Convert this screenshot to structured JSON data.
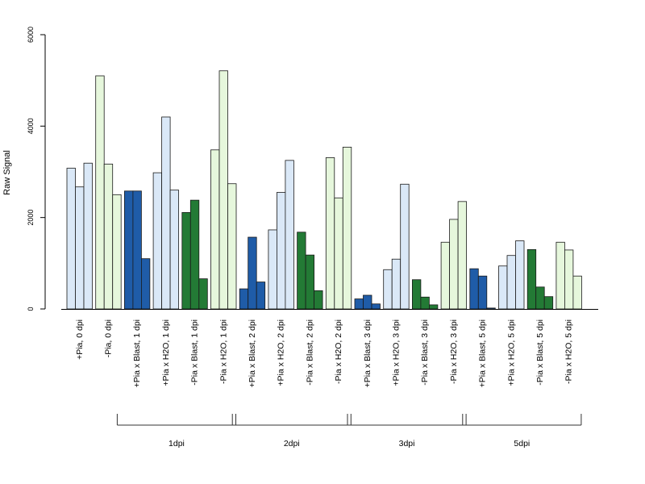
{
  "chart_data": {
    "type": "bar",
    "ylabel": "Raw Signal",
    "ylim": [
      0,
      6000
    ],
    "yticks": [
      0,
      2000,
      4000,
      6000
    ],
    "grid": false,
    "legend": "none",
    "colors": {
      "light_blue": "#dae8f7",
      "light_green": "#e6f7dc",
      "dark_blue": "#1f5ca8",
      "dark_green": "#237a35",
      "axis": "#000000"
    },
    "groups": [
      {
        "label": "+Pia, 0 dpi",
        "color": "light_blue",
        "values": [
          3080,
          2670,
          3190
        ]
      },
      {
        "label": "-Pia, 0 dpi",
        "color": "light_green",
        "values": [
          5100,
          3170,
          2500
        ]
      },
      {
        "label": "+Pia x Blast, 1 dpi",
        "color": "dark_blue",
        "values": [
          2580,
          2580,
          1100
        ]
      },
      {
        "label": "+Pia x H2O, 1 dpi",
        "color": "light_blue",
        "values": [
          2980,
          4200,
          2600
        ]
      },
      {
        "label": "-Pia x Blast, 1 dpi",
        "color": "dark_green",
        "values": [
          2110,
          2380,
          660
        ]
      },
      {
        "label": "-Pia x H2O, 1 dpi",
        "color": "light_green",
        "values": [
          3480,
          5210,
          2740
        ]
      },
      {
        "label": "+Pia x Blast, 2 dpi",
        "color": "dark_blue",
        "values": [
          440,
          1570,
          590
        ]
      },
      {
        "label": "+Pia x H2O, 2 dpi",
        "color": "light_blue",
        "values": [
          1730,
          2550,
          3250
        ]
      },
      {
        "label": "-Pia x Blast, 2 dpi",
        "color": "dark_green",
        "values": [
          1680,
          1180,
          400
        ]
      },
      {
        "label": "-Pia x H2O, 2 dpi",
        "color": "light_green",
        "values": [
          3310,
          2430,
          3540
        ]
      },
      {
        "label": "+Pia x Blast, 3 dpi",
        "color": "dark_blue",
        "values": [
          220,
          300,
          110
        ]
      },
      {
        "label": "+Pia x H2O, 3 dpi",
        "color": "light_blue",
        "values": [
          860,
          1090,
          2730
        ]
      },
      {
        "label": "-Pia x Blast, 3 dpi",
        "color": "dark_green",
        "values": [
          640,
          260,
          90
        ]
      },
      {
        "label": "-Pia x H2O, 3 dpi",
        "color": "light_green",
        "values": [
          1460,
          1960,
          2350
        ]
      },
      {
        "label": "+Pia x Blast, 5 dpi",
        "color": "dark_blue",
        "values": [
          880,
          720,
          20
        ]
      },
      {
        "label": "+Pia x H2O, 5 dpi",
        "color": "light_blue",
        "values": [
          940,
          1170,
          1490
        ]
      },
      {
        "label": "-Pia x Blast, 5 dpi",
        "color": "dark_green",
        "values": [
          1300,
          480,
          270
        ]
      },
      {
        "label": "-Pia x H2O, 5 dpi",
        "color": "light_green",
        "values": [
          1460,
          1290,
          720
        ]
      }
    ],
    "brackets": [
      {
        "label": "1dpi",
        "from_group": 2,
        "to_group": 5
      },
      {
        "label": "2dpi",
        "from_group": 6,
        "to_group": 9
      },
      {
        "label": "3dpi",
        "from_group": 10,
        "to_group": 13
      },
      {
        "label": "5dpi",
        "from_group": 14,
        "to_group": 17
      }
    ]
  }
}
